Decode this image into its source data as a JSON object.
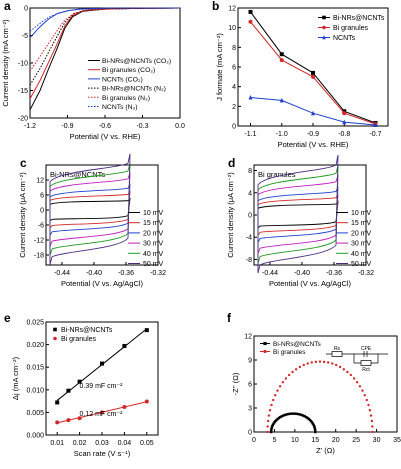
{
  "chart_data": [
    {
      "panel": "a",
      "type": "line",
      "xlabel": "Potential (V vs. RHE)",
      "ylabel": "Current density (mA cm⁻²)",
      "xlim": [
        -1.2,
        0.0
      ],
      "ylim": [
        -20,
        0
      ],
      "xticks": [
        "-1.2",
        "-0.9",
        "-0.6",
        "-0.3",
        "0.0"
      ],
      "yticks": [
        "-20",
        "-15",
        "-10",
        "-5",
        "0"
      ],
      "legend_position": "right",
      "series": [
        {
          "name": "Bi-NRs@NCNTs (CO₂)",
          "color": "#000000",
          "dash": "solid",
          "points": [
            [
              -1.2,
              -18.5
            ],
            [
              -1.12,
              -15.0
            ],
            [
              -1.05,
              -11.0
            ],
            [
              -0.98,
              -7.2
            ],
            [
              -0.92,
              -3.6
            ],
            [
              -0.86,
              -1.6
            ],
            [
              -0.78,
              -0.6
            ],
            [
              -0.6,
              -0.2
            ],
            [
              -0.3,
              -0.05
            ],
            [
              0.0,
              0.0
            ]
          ]
        },
        {
          "name": "Bi granules (CO₂)",
          "color": "#d62728",
          "dash": "solid",
          "points": [
            [
              -1.2,
              -16.5
            ],
            [
              -1.12,
              -13.2
            ],
            [
              -1.05,
              -9.8
            ],
            [
              -0.98,
              -6.4
            ],
            [
              -0.92,
              -3.2
            ],
            [
              -0.86,
              -1.4
            ],
            [
              -0.78,
              -0.5
            ],
            [
              -0.6,
              -0.2
            ],
            [
              -0.3,
              -0.05
            ],
            [
              0.0,
              0.0
            ]
          ]
        },
        {
          "name": "NCNTs (CO₂)",
          "color": "#1f3fd1",
          "dash": "solid",
          "points": [
            [
              -1.2,
              -5.4
            ],
            [
              -1.12,
              -3.4
            ],
            [
              -1.05,
              -2.0
            ],
            [
              -0.98,
              -1.0
            ],
            [
              -0.9,
              -0.5
            ],
            [
              -0.8,
              -0.2
            ],
            [
              -0.6,
              -0.05
            ],
            [
              0.0,
              0.0
            ]
          ]
        },
        {
          "name": "Bi-NRs@NCNTs (N₂)",
          "color": "#000000",
          "dash": "dot",
          "points": [
            [
              -1.2,
              -14.0
            ],
            [
              -1.12,
              -11.0
            ],
            [
              -1.05,
              -8.0
            ],
            [
              -0.98,
              -5.0
            ],
            [
              -0.92,
              -2.6
            ],
            [
              -0.85,
              -1.0
            ],
            [
              -0.75,
              -0.4
            ],
            [
              -0.6,
              -0.1
            ],
            [
              0.0,
              0.0
            ]
          ]
        },
        {
          "name": "Bi granules (N₂)",
          "color": "#d62728",
          "dash": "dot",
          "points": [
            [
              -1.2,
              -11.5
            ],
            [
              -1.12,
              -8.8
            ],
            [
              -1.05,
              -6.4
            ],
            [
              -0.98,
              -4.0
            ],
            [
              -0.92,
              -2.2
            ],
            [
              -0.85,
              -1.0
            ],
            [
              -0.75,
              -0.4
            ],
            [
              -0.6,
              -0.1
            ],
            [
              0.0,
              0.0
            ]
          ]
        },
        {
          "name": "NCNTs (N₂)",
          "color": "#1f3fd1",
          "dash": "dot",
          "points": [
            [
              -1.2,
              -4.2
            ],
            [
              -1.12,
              -2.8
            ],
            [
              -1.05,
              -1.7
            ],
            [
              -0.98,
              -1.0
            ],
            [
              -0.9,
              -0.5
            ],
            [
              -0.8,
              -0.2
            ],
            [
              -0.6,
              -0.05
            ],
            [
              0.0,
              0.0
            ]
          ]
        }
      ]
    },
    {
      "panel": "b",
      "type": "line",
      "xlabel": "Potential (V vs. RHE)",
      "ylabel": "J formate (mA cm⁻²)",
      "xlim": [
        -1.1,
        -0.7
      ],
      "ylim": [
        0,
        12
      ],
      "xticks": [
        "-1.1",
        "-1.0",
        "-0.9",
        "-0.8",
        "-0.7"
      ],
      "yticks": [
        "0",
        "2",
        "4",
        "6",
        "8",
        "10",
        "12"
      ],
      "categories": [
        -1.1,
        -1.0,
        -0.9,
        -0.8,
        -0.7
      ],
      "legend_position": "top-right",
      "series": [
        {
          "name": "Bi-NRs@NCNTs",
          "color": "#000000",
          "marker": "square",
          "values": [
            11.6,
            7.3,
            5.4,
            1.5,
            0.3
          ]
        },
        {
          "name": "Bi granules",
          "color": "#d62728",
          "marker": "circle",
          "values": [
            10.6,
            6.7,
            5.0,
            1.3,
            0.2
          ]
        },
        {
          "name": "NCNTs",
          "color": "#1f3fd1",
          "marker": "triangle",
          "values": [
            2.9,
            2.6,
            1.3,
            0.4,
            0.1
          ]
        }
      ]
    },
    {
      "panel": "c",
      "type": "line",
      "title": "Bi-NRs@NCNTs",
      "xlabel": "Potential (V vs. Ag/AgCl)",
      "ylabel": "Current density (μA cm⁻²)",
      "xlim": [
        -0.46,
        -0.32
      ],
      "ylim": [
        -22,
        18
      ],
      "xticks": [
        "-0.44",
        "-0.40",
        "-0.36",
        "-0.32"
      ],
      "yticks": [
        "-18",
        "-12",
        "-6",
        "0",
        "6",
        "12"
      ],
      "cv_window": [
        -0.455,
        -0.355
      ],
      "legend_position": "right",
      "series": [
        {
          "name": "10 mV",
          "color": "#000000",
          "amplitude": 3.0
        },
        {
          "name": "15 mV",
          "color": "#d62728",
          "amplitude": 5.0
        },
        {
          "name": "20 mV",
          "color": "#1f3fd1",
          "amplitude": 7.0
        },
        {
          "name": "30 mV",
          "color": "#c21fc2",
          "amplitude": 10.0
        },
        {
          "name": "40 mV",
          "color": "#1f9a1f",
          "amplitude": 12.5
        },
        {
          "name": "50 mV",
          "color": "#4b2c83",
          "amplitude": 15.0
        }
      ]
    },
    {
      "panel": "d",
      "type": "line",
      "title": "Bi granules",
      "xlabel": "Potential (V vs. Ag/AgCl)",
      "ylabel": "Current density (μA cm⁻²)",
      "xlim": [
        -0.46,
        -0.32
      ],
      "ylim": [
        -9,
        9
      ],
      "xticks": [
        "-0.44",
        "-0.40",
        "-0.36",
        "-0.32"
      ],
      "yticks": [
        "-8",
        "-4",
        "0",
        "4",
        "8"
      ],
      "cv_window": [
        -0.455,
        -0.355
      ],
      "legend_position": "right",
      "series": [
        {
          "name": "10 mV",
          "color": "#000000",
          "amplitude": 1.6
        },
        {
          "name": "15 mV",
          "color": "#d62728",
          "amplitude": 2.5
        },
        {
          "name": "20 mV",
          "color": "#1f3fd1",
          "amplitude": 3.4
        },
        {
          "name": "30 mV",
          "color": "#c21fc2",
          "amplitude": 4.8
        },
        {
          "name": "40 mV",
          "color": "#1f9a1f",
          "amplitude": 6.0
        },
        {
          "name": "50 mV",
          "color": "#4b2c83",
          "amplitude": 7.2
        }
      ]
    },
    {
      "panel": "e",
      "type": "scatter",
      "xlabel": "Scan rate (V s⁻¹)",
      "ylabel": "Δj (mA cm⁻²)",
      "xlim": [
        0.005,
        0.055
      ],
      "ylim": [
        0,
        0.025
      ],
      "xticks": [
        "0.01",
        "0.02",
        "0.03",
        "0.04",
        "0.05"
      ],
      "yticks": [
        "0.000",
        "0.005",
        "0.010",
        "0.015",
        "0.020",
        "0.025"
      ],
      "legend_position": "top-left",
      "annotations": [
        "0.39 mF cm⁻²",
        "0.12 mF cm⁻²"
      ],
      "series": [
        {
          "name": "Bi-NRs@NCNTs",
          "color": "#000000",
          "marker": "square",
          "x": [
            0.01,
            0.015,
            0.02,
            0.03,
            0.04,
            0.05
          ],
          "y": [
            0.0072,
            0.0098,
            0.0118,
            0.0158,
            0.0197,
            0.0232
          ]
        },
        {
          "name": "Bi granules",
          "color": "#d62728",
          "marker": "circle",
          "x": [
            0.01,
            0.015,
            0.02,
            0.03,
            0.04,
            0.05
          ],
          "y": [
            0.0028,
            0.0033,
            0.0037,
            0.005,
            0.0062,
            0.0074
          ]
        }
      ]
    },
    {
      "panel": "f",
      "type": "scatter",
      "xlabel": "Z' (Ω)",
      "ylabel": "-Z'' (Ω)",
      "xlim": [
        0,
        35
      ],
      "ylim": [
        0,
        12
      ],
      "xticks": [
        "0",
        "5",
        "10",
        "15",
        "20",
        "25",
        "30",
        "35"
      ],
      "yticks": [
        "0",
        "3",
        "6",
        "9",
        "12"
      ],
      "legend_position": "top-left",
      "circuit_labels": [
        "Rs",
        "CPE",
        "Rct"
      ],
      "series": [
        {
          "name": "Bi-NRs@NCNTs",
          "color": "#000000",
          "marker": "square",
          "arc": [
            4.2,
            15.0
          ],
          "peak": 2.3
        },
        {
          "name": "Bi granules",
          "color": "#d62728",
          "marker": "circle",
          "arc": [
            3.3,
            29.0
          ],
          "peak": 8.8
        }
      ]
    }
  ]
}
